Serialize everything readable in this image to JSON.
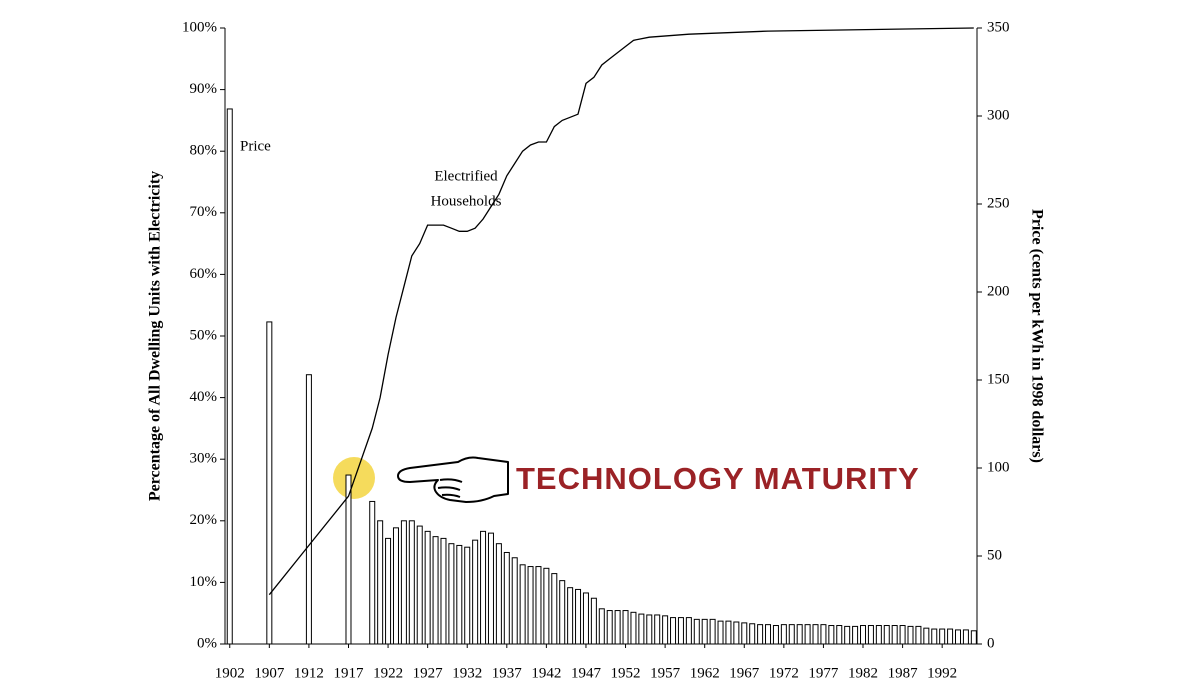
{
  "chart_data": {
    "type": "bar-line",
    "y_label": "Percentage of All Dwelling Units with Electricity",
    "y2_label": "Price (cents per kWh in 1998 dollars)",
    "xlim": [
      1901.4,
      1996.4
    ],
    "xticks": [
      1902,
      1907,
      1912,
      1917,
      1922,
      1927,
      1932,
      1937,
      1942,
      1947,
      1952,
      1957,
      1962,
      1967,
      1972,
      1977,
      1982,
      1987,
      1992
    ],
    "ylim": [
      0,
      100
    ],
    "yticks": [
      {
        "value": 0,
        "label": "0%"
      },
      {
        "value": 10,
        "label": "10%"
      },
      {
        "value": 20,
        "label": "20%"
      },
      {
        "value": 30,
        "label": "30%"
      },
      {
        "value": 40,
        "label": "40%"
      },
      {
        "value": 50,
        "label": "50%"
      },
      {
        "value": 60,
        "label": "60%"
      },
      {
        "value": 70,
        "label": "70%"
      },
      {
        "value": 80,
        "label": "80%"
      },
      {
        "value": 90,
        "label": "90%"
      },
      {
        "value": 100,
        "label": "100%"
      }
    ],
    "y2lim": [
      0,
      350
    ],
    "y2ticks": [
      0,
      50,
      100,
      150,
      200,
      250,
      300,
      350
    ],
    "series": [
      {
        "name": "Price",
        "kind": "bar",
        "axis": "y2",
        "color": "#ffffff",
        "x": [
          1902,
          1907,
          1912,
          1917,
          1920,
          1921,
          1922,
          1923,
          1924,
          1925,
          1926,
          1927,
          1928,
          1929,
          1930,
          1931,
          1932,
          1933,
          1934,
          1935,
          1936,
          1937,
          1938,
          1939,
          1940,
          1941,
          1942,
          1943,
          1944,
          1945,
          1946,
          1947,
          1948,
          1949,
          1950,
          1951,
          1952,
          1953,
          1954,
          1955,
          1956,
          1957,
          1958,
          1959,
          1960,
          1961,
          1962,
          1963,
          1964,
          1965,
          1966,
          1967,
          1968,
          1969,
          1970,
          1971,
          1972,
          1973,
          1974,
          1975,
          1976,
          1977,
          1978,
          1979,
          1980,
          1981,
          1982,
          1983,
          1984,
          1985,
          1986,
          1987,
          1988,
          1989,
          1990,
          1991,
          1992,
          1993,
          1994,
          1995,
          1996
        ],
        "values": [
          304,
          183,
          153,
          96,
          81,
          70,
          60,
          66,
          70,
          70,
          67,
          64,
          61,
          60,
          57,
          56,
          55,
          59,
          64,
          63,
          57,
          52,
          49,
          45,
          44,
          44,
          43,
          40,
          36,
          32,
          31,
          29,
          26,
          20,
          19,
          19,
          19,
          18,
          17,
          16.5,
          16.5,
          16,
          15,
          15,
          15,
          14,
          14,
          14,
          13,
          13,
          12.5,
          12,
          11.5,
          11,
          11,
          10.5,
          11,
          11,
          11,
          11,
          11,
          11,
          10.5,
          10.5,
          10,
          10,
          10.5,
          10.5,
          10.5,
          10.5,
          10.5,
          10.5,
          10,
          10,
          9,
          8.5,
          8.5,
          8.5,
          8,
          8,
          7.5
        ]
      },
      {
        "name": "Electrified Households",
        "kind": "line",
        "axis": "y",
        "color": "#000000",
        "x": [
          1907,
          1912,
          1917,
          1920,
          1921,
          1922,
          1923,
          1924,
          1925,
          1926,
          1927,
          1928,
          1929,
          1930,
          1931,
          1932,
          1933,
          1934,
          1935,
          1936,
          1937,
          1938,
          1939,
          1940,
          1941,
          1942,
          1943,
          1944,
          1945,
          1946,
          1947,
          1948,
          1949,
          1950,
          1951,
          1952,
          1953,
          1955,
          1960,
          1970,
          1996
        ],
        "values": [
          8,
          16,
          24,
          35,
          40,
          47,
          53,
          58,
          63,
          65,
          68,
          68,
          68,
          67.5,
          67,
          67,
          67.5,
          69,
          71,
          73,
          76,
          78,
          80,
          81,
          81.5,
          81.5,
          84,
          85,
          85.5,
          86,
          91,
          92,
          94,
          95,
          96,
          97,
          98,
          98.5,
          99,
          99.5,
          100
        ]
      }
    ],
    "annotations": [
      {
        "text": [
          "Price"
        ]
      },
      {
        "text": [
          "Electrified",
          "Households"
        ]
      },
      {
        "text": [
          "TECHNOLOGY MATURITY"
        ],
        "color": "#9b2226"
      }
    ]
  }
}
